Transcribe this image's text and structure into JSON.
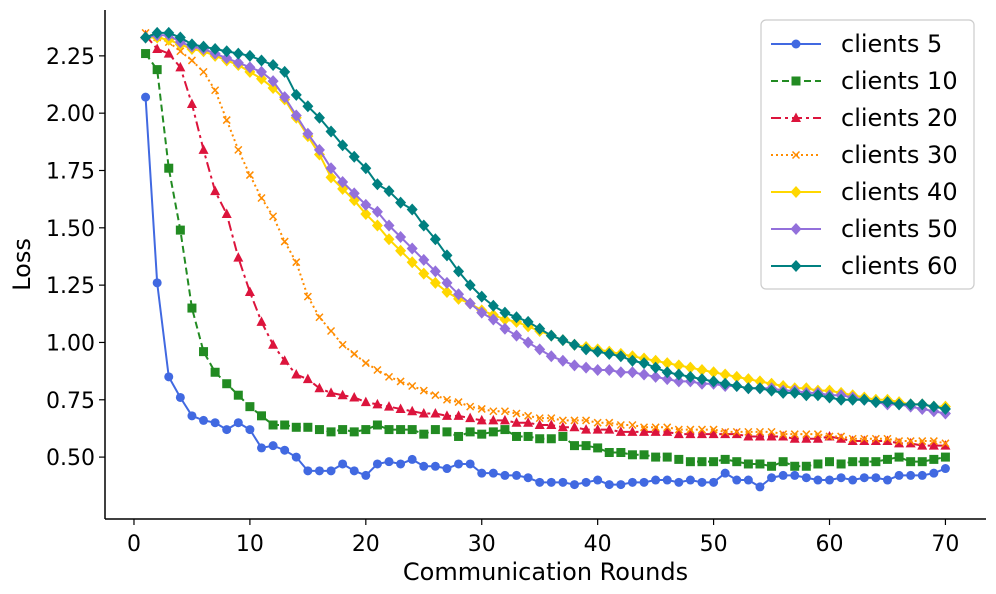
{
  "chart_data": {
    "type": "line",
    "title": "",
    "xlabel": "Communication Rounds",
    "ylabel": "Loss",
    "xlim": [
      -2.5,
      73.5
    ],
    "ylim": [
      0.23,
      2.45
    ],
    "xticks": [
      0,
      10,
      20,
      30,
      40,
      50,
      60,
      70
    ],
    "xtick_labels": [
      "0",
      "10",
      "20",
      "30",
      "40",
      "50",
      "60",
      "70"
    ],
    "yticks": [
      0.5,
      0.75,
      1.0,
      1.25,
      1.5,
      1.75,
      2.0,
      2.25
    ],
    "ytick_labels": [
      "0.50",
      "0.75",
      "1.00",
      "1.25",
      "1.50",
      "1.75",
      "2.00",
      "2.25"
    ],
    "grid": false,
    "legend_position": "top-right",
    "x": [
      1,
      2,
      3,
      4,
      5,
      6,
      7,
      8,
      9,
      10,
      11,
      12,
      13,
      14,
      15,
      16,
      17,
      18,
      19,
      20,
      21,
      22,
      23,
      24,
      25,
      26,
      27,
      28,
      29,
      30,
      31,
      32,
      33,
      34,
      35,
      36,
      37,
      38,
      39,
      40,
      41,
      42,
      43,
      44,
      45,
      46,
      47,
      48,
      49,
      50,
      51,
      52,
      53,
      54,
      55,
      56,
      57,
      58,
      59,
      60,
      61,
      62,
      63,
      64,
      65,
      66,
      67,
      68,
      69,
      70
    ],
    "series": [
      {
        "name": "clients 5",
        "color": "#4169e1",
        "dash": "solid",
        "marker": "circle",
        "values": [
          2.07,
          1.26,
          0.85,
          0.76,
          0.68,
          0.66,
          0.65,
          0.62,
          0.65,
          0.62,
          0.54,
          0.55,
          0.53,
          0.5,
          0.44,
          0.44,
          0.44,
          0.47,
          0.44,
          0.42,
          0.47,
          0.48,
          0.47,
          0.49,
          0.46,
          0.46,
          0.45,
          0.47,
          0.47,
          0.43,
          0.43,
          0.42,
          0.42,
          0.41,
          0.39,
          0.39,
          0.39,
          0.38,
          0.39,
          0.4,
          0.38,
          0.38,
          0.39,
          0.39,
          0.4,
          0.4,
          0.39,
          0.4,
          0.39,
          0.39,
          0.43,
          0.4,
          0.4,
          0.37,
          0.41,
          0.42,
          0.42,
          0.41,
          0.4,
          0.4,
          0.41,
          0.4,
          0.41,
          0.41,
          0.4,
          0.42,
          0.42,
          0.42,
          0.43,
          0.45
        ]
      },
      {
        "name": "clients 10",
        "color": "#228b22",
        "dash": "dashed",
        "marker": "square",
        "values": [
          2.26,
          2.19,
          1.76,
          1.49,
          1.15,
          0.96,
          0.87,
          0.82,
          0.77,
          0.72,
          0.68,
          0.64,
          0.64,
          0.63,
          0.63,
          0.62,
          0.61,
          0.62,
          0.61,
          0.62,
          0.64,
          0.62,
          0.62,
          0.62,
          0.6,
          0.62,
          0.61,
          0.59,
          0.61,
          0.6,
          0.61,
          0.62,
          0.59,
          0.59,
          0.58,
          0.58,
          0.59,
          0.55,
          0.55,
          0.54,
          0.52,
          0.52,
          0.51,
          0.51,
          0.5,
          0.5,
          0.49,
          0.48,
          0.48,
          0.48,
          0.49,
          0.48,
          0.47,
          0.47,
          0.46,
          0.48,
          0.46,
          0.46,
          0.47,
          0.48,
          0.47,
          0.48,
          0.48,
          0.48,
          0.49,
          0.5,
          0.48,
          0.48,
          0.49,
          0.5
        ]
      },
      {
        "name": "clients 20",
        "color": "#dc143c",
        "dash": "dashdot",
        "marker": "triangle",
        "values": [
          2.34,
          2.28,
          2.26,
          2.2,
          2.04,
          1.84,
          1.66,
          1.56,
          1.37,
          1.22,
          1.09,
          0.99,
          0.92,
          0.86,
          0.84,
          0.8,
          0.78,
          0.77,
          0.76,
          0.74,
          0.73,
          0.72,
          0.71,
          0.7,
          0.69,
          0.69,
          0.68,
          0.68,
          0.67,
          0.66,
          0.66,
          0.66,
          0.65,
          0.65,
          0.64,
          0.64,
          0.63,
          0.63,
          0.62,
          0.62,
          0.62,
          0.61,
          0.61,
          0.61,
          0.61,
          0.61,
          0.6,
          0.6,
          0.6,
          0.6,
          0.6,
          0.6,
          0.59,
          0.59,
          0.59,
          0.59,
          0.58,
          0.58,
          0.58,
          0.59,
          0.58,
          0.57,
          0.57,
          0.57,
          0.57,
          0.56,
          0.56,
          0.55,
          0.55,
          0.55
        ]
      },
      {
        "name": "clients 30",
        "color": "#ff8c00",
        "dash": "dotted",
        "marker": "x",
        "values": [
          2.35,
          2.33,
          2.31,
          2.27,
          2.23,
          2.18,
          2.1,
          1.97,
          1.84,
          1.73,
          1.63,
          1.55,
          1.44,
          1.35,
          1.2,
          1.11,
          1.05,
          0.99,
          0.95,
          0.91,
          0.88,
          0.85,
          0.83,
          0.81,
          0.79,
          0.77,
          0.75,
          0.74,
          0.72,
          0.71,
          0.7,
          0.7,
          0.69,
          0.68,
          0.67,
          0.67,
          0.66,
          0.66,
          0.66,
          0.65,
          0.65,
          0.64,
          0.64,
          0.63,
          0.63,
          0.63,
          0.62,
          0.62,
          0.62,
          0.62,
          0.61,
          0.61,
          0.61,
          0.61,
          0.61,
          0.6,
          0.6,
          0.6,
          0.6,
          0.59,
          0.59,
          0.58,
          0.58,
          0.58,
          0.58,
          0.57,
          0.57,
          0.57,
          0.57,
          0.56
        ]
      },
      {
        "name": "clients 40",
        "color": "#ffd700",
        "dash": "solid",
        "marker": "diamond",
        "values": [
          2.33,
          2.33,
          2.32,
          2.3,
          2.28,
          2.27,
          2.25,
          2.23,
          2.21,
          2.18,
          2.15,
          2.11,
          2.06,
          1.98,
          1.9,
          1.82,
          1.72,
          1.67,
          1.62,
          1.56,
          1.51,
          1.45,
          1.4,
          1.35,
          1.3,
          1.26,
          1.22,
          1.19,
          1.17,
          1.14,
          1.12,
          1.1,
          1.09,
          1.07,
          1.05,
          1.03,
          1.01,
          0.99,
          0.98,
          0.97,
          0.96,
          0.95,
          0.94,
          0.93,
          0.92,
          0.91,
          0.9,
          0.89,
          0.88,
          0.87,
          0.86,
          0.85,
          0.84,
          0.83,
          0.82,
          0.81,
          0.8,
          0.8,
          0.79,
          0.79,
          0.78,
          0.77,
          0.76,
          0.75,
          0.75,
          0.74,
          0.73,
          0.73,
          0.72,
          0.72
        ]
      },
      {
        "name": "clients 50",
        "color": "#9370db",
        "dash": "solid",
        "marker": "diamond",
        "values": [
          2.33,
          2.34,
          2.34,
          2.31,
          2.29,
          2.28,
          2.26,
          2.24,
          2.22,
          2.2,
          2.18,
          2.14,
          2.07,
          1.99,
          1.91,
          1.84,
          1.76,
          1.7,
          1.65,
          1.6,
          1.57,
          1.51,
          1.46,
          1.41,
          1.36,
          1.31,
          1.26,
          1.21,
          1.17,
          1.13,
          1.1,
          1.06,
          1.03,
          1.0,
          0.97,
          0.94,
          0.92,
          0.9,
          0.89,
          0.88,
          0.88,
          0.87,
          0.87,
          0.86,
          0.85,
          0.84,
          0.83,
          0.83,
          0.82,
          0.82,
          0.81,
          0.81,
          0.8,
          0.8,
          0.8,
          0.79,
          0.79,
          0.78,
          0.78,
          0.77,
          0.77,
          0.76,
          0.75,
          0.74,
          0.73,
          0.73,
          0.72,
          0.71,
          0.7,
          0.69
        ]
      },
      {
        "name": "clients 60",
        "color": "#008080",
        "dash": "solid",
        "marker": "diamond",
        "values": [
          2.33,
          2.35,
          2.35,
          2.33,
          2.3,
          2.29,
          2.28,
          2.27,
          2.26,
          2.25,
          2.23,
          2.21,
          2.18,
          2.08,
          2.03,
          1.98,
          1.92,
          1.86,
          1.81,
          1.76,
          1.69,
          1.66,
          1.61,
          1.58,
          1.51,
          1.45,
          1.38,
          1.31,
          1.25,
          1.2,
          1.16,
          1.13,
          1.11,
          1.09,
          1.06,
          1.03,
          1.01,
          0.99,
          0.97,
          0.96,
          0.95,
          0.94,
          0.92,
          0.91,
          0.89,
          0.87,
          0.86,
          0.85,
          0.84,
          0.83,
          0.82,
          0.81,
          0.8,
          0.8,
          0.79,
          0.78,
          0.78,
          0.77,
          0.77,
          0.76,
          0.75,
          0.75,
          0.75,
          0.74,
          0.74,
          0.73,
          0.73,
          0.73,
          0.72,
          0.71
        ]
      }
    ]
  }
}
